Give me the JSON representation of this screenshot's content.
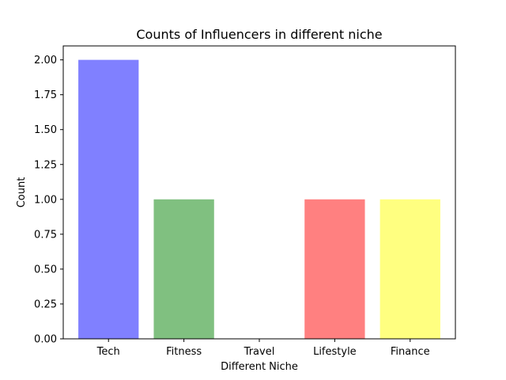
{
  "chart_data": {
    "type": "bar",
    "title": "Counts of Influencers in different niche",
    "xlabel": "Different Niche",
    "ylabel": "Count",
    "categories": [
      "Tech",
      "Fitness",
      "Travel",
      "Lifestyle",
      "Finance"
    ],
    "values": [
      2,
      1,
      0,
      1,
      1
    ],
    "colors": [
      "#8080ff",
      "#80c080",
      "#ffffff",
      "#ff8080",
      "#ffff80"
    ],
    "ylim": [
      0,
      2.1
    ],
    "yticks": [
      "0.00",
      "0.25",
      "0.50",
      "0.75",
      "1.00",
      "1.25",
      "1.50",
      "1.75",
      "2.00"
    ],
    "grid": false,
    "legend": "none"
  }
}
